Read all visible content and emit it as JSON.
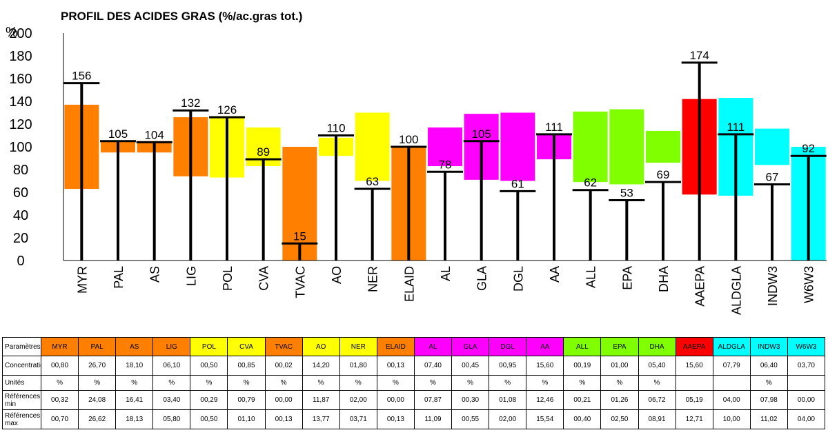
{
  "chart_data": {
    "type": "bar",
    "title": "PROFIL DES ACIDES GRAS (%/ac.gras tot.)",
    "ylabel": "%",
    "ylim": [
      0,
      200
    ],
    "yticks": [
      0,
      20,
      40,
      60,
      80,
      100,
      120,
      140,
      160,
      180,
      200
    ],
    "categories": [
      "MYR",
      "PAL",
      "AS",
      "LIG",
      "POL",
      "CVA",
      "TVAC",
      "AO",
      "NER",
      "ELAID",
      "AL",
      "GLA",
      "DGL",
      "AA",
      "ALL",
      "EPA",
      "DHA",
      "AAEPA",
      "ALDGLA",
      "INDW3",
      "W6W3"
    ],
    "values": [
      156,
      105,
      104,
      132,
      126,
      89,
      15,
      110,
      63,
      100,
      78,
      105,
      61,
      111,
      62,
      53,
      69,
      174,
      111,
      67,
      92
    ],
    "ranges": [
      [
        63,
        137
      ],
      [
        95,
        105
      ],
      [
        95,
        105
      ],
      [
        74,
        126
      ],
      [
        73,
        127
      ],
      [
        83,
        117
      ],
      [
        0,
        100
      ],
      [
        92,
        108
      ],
      [
        70,
        130
      ],
      [
        0,
        100
      ],
      [
        83,
        117
      ],
      [
        71,
        129
      ],
      [
        70,
        130
      ],
      [
        89,
        111
      ],
      [
        69,
        131
      ],
      [
        67,
        133
      ],
      [
        86,
        114
      ],
      [
        58,
        142
      ],
      [
        57,
        143
      ],
      [
        84,
        116
      ],
      [
        0,
        100
      ]
    ],
    "colors": [
      "#FF8000",
      "#FF8000",
      "#FF8000",
      "#FF8000",
      "#FFFF00",
      "#FFFF00",
      "#FF8000",
      "#FFFF00",
      "#FFFF00",
      "#FF8000",
      "#FF00FF",
      "#FF00FF",
      "#FF00FF",
      "#FF00FF",
      "#80FF00",
      "#80FF00",
      "#80FF00",
      "#FF0000",
      "#00FFFF",
      "#00FFFF",
      "#00FFFF"
    ],
    "grid": false,
    "legend": "none"
  },
  "table": {
    "header_label": "Paramètres",
    "rows": [
      {
        "label": "Concentrations",
        "values": [
          "00,80",
          "26,70",
          "18,10",
          "06,10",
          "00,50",
          "00,85",
          "00,02",
          "14,20",
          "01,80",
          "00,13",
          "07,40",
          "00,45",
          "00,95",
          "15,60",
          "00,19",
          "01,00",
          "05,40",
          "15,60",
          "07,79",
          "06,40",
          "03,70"
        ]
      },
      {
        "label": "Unités",
        "values": [
          "%",
          "%",
          "%",
          "%",
          "%",
          "%",
          "%",
          "%",
          "%",
          "%",
          "%",
          "%",
          "%",
          "%",
          "%",
          "%",
          "%",
          "",
          "",
          "%",
          ""
        ]
      },
      {
        "label": "Références min",
        "values": [
          "00,32",
          "24,08",
          "16,41",
          "03,40",
          "00,29",
          "00,79",
          "00,00",
          "11,87",
          "02,00",
          "00,00",
          "07,87",
          "00,30",
          "01,08",
          "12,46",
          "00,21",
          "01,26",
          "06,72",
          "05,19",
          "04,00",
          "07,98",
          "00,00"
        ]
      },
      {
        "label": "Références max",
        "values": [
          "00,70",
          "26,62",
          "18,13",
          "05,80",
          "00,50",
          "01,10",
          "00,13",
          "13,77",
          "03,71",
          "00,13",
          "11,09",
          "00,55",
          "02,00",
          "15,54",
          "00,40",
          "02,50",
          "08,91",
          "12,71",
          "10,00",
          "11,02",
          "04,00"
        ]
      }
    ]
  }
}
